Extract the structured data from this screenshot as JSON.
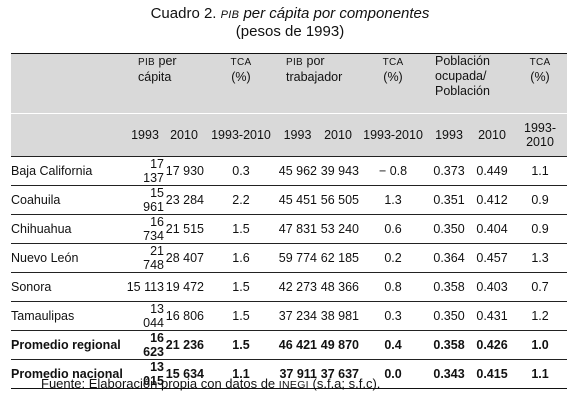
{
  "caption": {
    "prefix": "Cuadro 2.",
    "pib": "PIB",
    "title_rest": "per cápita por componentes",
    "subtitle": "(pesos de 1993)"
  },
  "headers": {
    "pib_prefix": "PIB",
    "pib_pc_suffix": "per",
    "pib_pc_line2": "cápita",
    "tca": "TCA",
    "pct": "(%)",
    "pib_pt_suffix": "por",
    "pib_pt_line2": "trabajador",
    "pob_line1": "Población",
    "pob_line2": "ocupada/",
    "pob_line3": "Población"
  },
  "years": [
    "1993",
    "2010",
    "1993-2010",
    "1993",
    "2010",
    "1993-2010",
    "1993",
    "2010",
    "1993-2010"
  ],
  "rows": [
    {
      "name": "Baja California",
      "v": [
        "17 137",
        "17 930",
        "0.3",
        "45 962",
        "39 943",
        "− 0.8",
        "0.373",
        "0.449",
        "1.1"
      ]
    },
    {
      "name": "Coahuila",
      "v": [
        "15 961",
        "23 284",
        "2.2",
        "45 451",
        "56 505",
        "1.3",
        "0.351",
        "0.412",
        "0.9"
      ]
    },
    {
      "name": "Chihuahua",
      "v": [
        "16 734",
        "21 515",
        "1.5",
        "47 831",
        "53 240",
        "0.6",
        "0.350",
        "0.404",
        "0.9"
      ]
    },
    {
      "name": "Nuevo León",
      "v": [
        "21 748",
        "28 407",
        "1.6",
        "59 774",
        "62 185",
        "0.2",
        "0.364",
        "0.457",
        "1.3"
      ]
    },
    {
      "name": "Sonora",
      "v": [
        "15 113",
        "19 472",
        "1.5",
        "42 273",
        "48 366",
        "0.8",
        "0.358",
        "0.403",
        "0.7"
      ]
    },
    {
      "name": "Tamaulipas",
      "v": [
        "13 044",
        "16 806",
        "1.5",
        "37 234",
        "38 981",
        "0.3",
        "0.350",
        "0.431",
        "1.2"
      ]
    },
    {
      "name": "Promedio regional",
      "v": [
        "16 623",
        "21 236",
        "1.5",
        "46 421",
        "49 870",
        "0.4",
        "0.358",
        "0.426",
        "1.0"
      ]
    },
    {
      "name": "Promedio nacional",
      "v": [
        "13 015",
        "15 634",
        "1.1",
        "37 911",
        "37 637",
        "0.0",
        "0.343",
        "0.415",
        "1.1"
      ]
    }
  ],
  "footer": {
    "prefix": "Fuente: Elaboración propia con datos de",
    "inegi": "INEGI",
    "suffix": "(s.f.a; s.f.c)."
  }
}
